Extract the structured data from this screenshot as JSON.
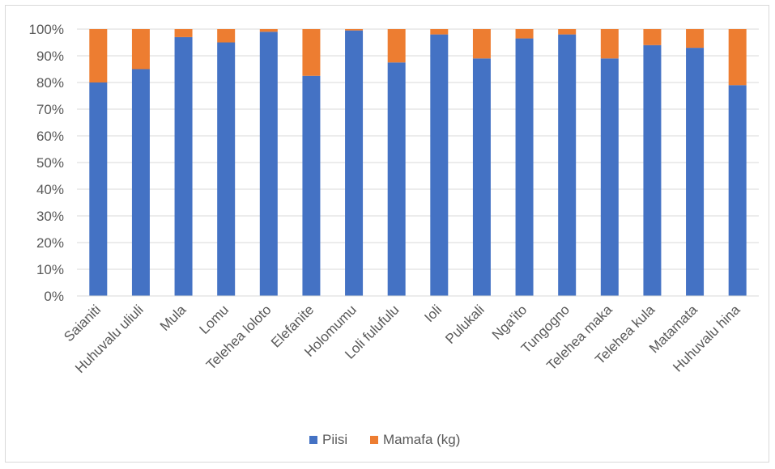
{
  "chart_data": {
    "type": "bar",
    "stacked": "percent",
    "categories": [
      "Saianiti",
      "Huhuvalu uliuli",
      "Mula",
      "Lomu",
      "Telehea loloto",
      "Elefanite",
      "Holomumu",
      "Loli fulufulu",
      "Ioli",
      "Pulukali",
      "Nga'ito",
      "Tungogno",
      "Telehea maka",
      "Telehea kula",
      "Matamata",
      "Huhuvalu hina"
    ],
    "series": [
      {
        "name": "Piisi",
        "color": "#4472c4",
        "values": [
          80,
          85,
          97,
          95,
          99,
          82.5,
          99.5,
          87.5,
          98,
          89,
          96.5,
          98,
          89,
          94,
          93,
          79
        ]
      },
      {
        "name": "Mamafa (kg)",
        "color": "#ed7d31",
        "values": [
          20,
          15,
          3,
          5,
          1,
          17.5,
          0.5,
          12.5,
          2,
          11,
          3.5,
          2,
          11,
          6,
          7,
          21
        ]
      }
    ],
    "yticks": [
      "0%",
      "10%",
      "20%",
      "30%",
      "40%",
      "50%",
      "60%",
      "70%",
      "80%",
      "90%",
      "100%"
    ],
    "ylim": [
      0,
      100
    ],
    "grid": true,
    "legend_position": "bottom"
  }
}
